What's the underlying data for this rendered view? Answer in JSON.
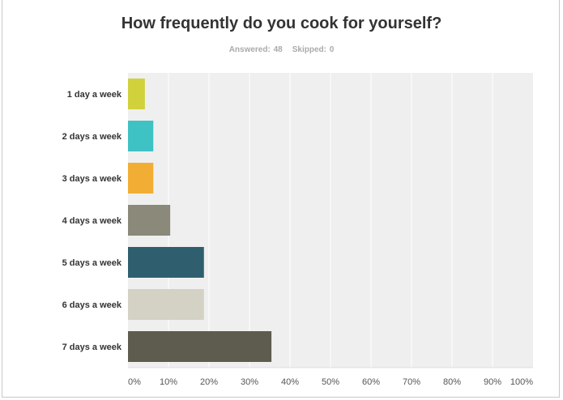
{
  "chart_data": {
    "type": "bar",
    "orientation": "horizontal",
    "title": "How frequently do you cook for yourself?",
    "summary": {
      "answered": "Answered: 48",
      "skipped": "Skipped: 0"
    },
    "categories": [
      "1 day a week",
      "2 days a week",
      "3 days a week",
      "4 days a week",
      "5 days a week",
      "6 days a week",
      "7 days a week"
    ],
    "values": [
      4.17,
      6.25,
      6.25,
      10.42,
      18.75,
      18.75,
      35.42
    ],
    "colors": [
      "#d1d13b",
      "#3ec2c4",
      "#f2ae34",
      "#8a897a",
      "#2f5f6e",
      "#d3d2c5",
      "#5e5c4f"
    ],
    "xlim": [
      0,
      100
    ],
    "xticks": [
      "0%",
      "10%",
      "20%",
      "30%",
      "40%",
      "50%",
      "60%",
      "70%",
      "80%",
      "90%",
      "100%"
    ],
    "grid": true,
    "plot_background": "#efefef"
  }
}
